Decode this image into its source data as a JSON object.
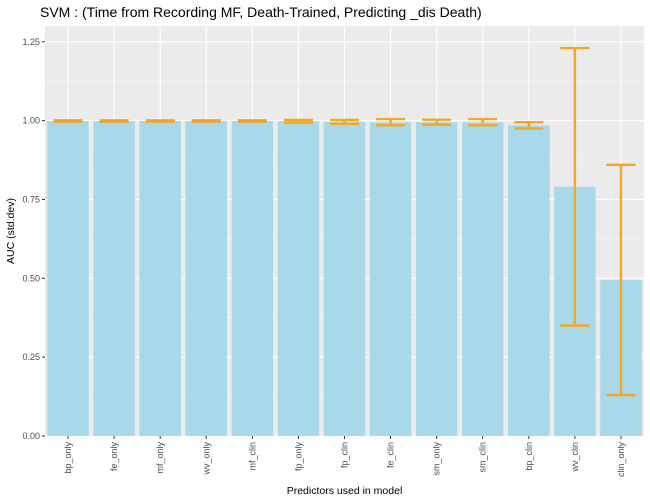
{
  "chart_data": {
    "type": "bar",
    "title": "SVM : (Time from Recording MF, Death-Trained, Predicting _dis Death)",
    "xlabel": "Predictors used in model",
    "ylabel": "AUC (std.dev)",
    "ylim": [
      0,
      1.3
    ],
    "yticks": [
      0.0,
      0.25,
      0.5,
      0.75,
      1.0,
      1.25
    ],
    "ytick_labels": [
      "0.00",
      "0.25",
      "0.50",
      "0.75",
      "1.00",
      "1.25"
    ],
    "grid": true,
    "categories": [
      "bp_only",
      "fe_only",
      "mf_only",
      "wv_only",
      "mf_clin",
      "fp_only",
      "fp_clin",
      "fe_clin",
      "sm_only",
      "sm_clin",
      "bp_clin",
      "wv_clin",
      "clin_only"
    ],
    "values": [
      0.999,
      0.999,
      0.999,
      0.999,
      0.999,
      0.998,
      0.996,
      0.995,
      0.995,
      0.995,
      0.985,
      0.79,
      0.495
    ],
    "error_low": [
      0.997,
      0.997,
      0.997,
      0.997,
      0.997,
      0.994,
      0.99,
      0.985,
      0.987,
      0.985,
      0.975,
      0.35,
      0.13
    ],
    "error_high": [
      1.001,
      1.001,
      1.001,
      1.001,
      1.001,
      1.002,
      1.002,
      1.005,
      1.003,
      1.005,
      0.995,
      1.23,
      0.86
    ],
    "colors": {
      "bar": "#a8d8ea",
      "error": "#f5a623",
      "panel": "#ebebeb",
      "grid": "#ffffff"
    }
  }
}
